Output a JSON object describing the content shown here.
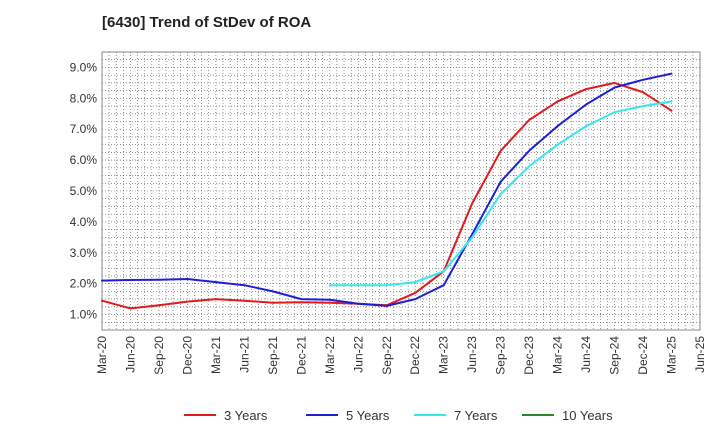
{
  "chart_data": {
    "type": "line",
    "title": "[6430]  Trend of StDev of ROA",
    "xlabel": "",
    "ylabel": "",
    "x": [
      "Mar-20",
      "Jun-20",
      "Sep-20",
      "Dec-20",
      "Mar-21",
      "Jun-21",
      "Sep-21",
      "Dec-21",
      "Mar-22",
      "Jun-22",
      "Sep-22",
      "Dec-22",
      "Mar-23",
      "Jun-23",
      "Sep-23",
      "Dec-23",
      "Mar-24",
      "Jun-24",
      "Sep-24",
      "Dec-24",
      "Mar-25",
      "Jun-25"
    ],
    "ylim": [
      0.5,
      9.5
    ],
    "y_ticks": [
      "1.0%",
      "2.0%",
      "3.0%",
      "4.0%",
      "5.0%",
      "6.0%",
      "7.0%",
      "8.0%",
      "9.0%"
    ],
    "y_tick_values": [
      1,
      2,
      3,
      4,
      5,
      6,
      7,
      8,
      9
    ],
    "grid": true,
    "legend_position": "bottom",
    "series": [
      {
        "name": "3 Years",
        "color": "#e31a1c",
        "values": [
          1.45,
          1.2,
          1.3,
          1.42,
          1.5,
          1.45,
          1.38,
          1.4,
          1.38,
          1.35,
          1.3,
          1.7,
          2.4,
          4.6,
          6.3,
          7.3,
          7.9,
          8.3,
          8.5,
          8.2,
          7.6,
          null
        ]
      },
      {
        "name": "5 Years",
        "color": "#1f1fd6",
        "values": [
          2.1,
          2.12,
          2.13,
          2.15,
          2.05,
          1.95,
          1.75,
          1.5,
          1.48,
          1.35,
          1.28,
          1.5,
          1.95,
          3.6,
          5.3,
          6.3,
          7.1,
          7.8,
          8.35,
          8.6,
          8.8,
          null
        ]
      },
      {
        "name": "7 Years",
        "color": "#33e8ee",
        "values": [
          null,
          null,
          null,
          null,
          null,
          null,
          null,
          null,
          1.95,
          1.95,
          1.95,
          2.05,
          2.4,
          3.5,
          4.9,
          5.8,
          6.5,
          7.1,
          7.55,
          7.75,
          7.9,
          null
        ]
      },
      {
        "name": "10 Years",
        "color": "#2a8a2a",
        "values": [
          null,
          null,
          null,
          null,
          null,
          null,
          null,
          null,
          null,
          null,
          null,
          null,
          null,
          null,
          null,
          null,
          null,
          null,
          null,
          null,
          null,
          null
        ]
      }
    ]
  }
}
